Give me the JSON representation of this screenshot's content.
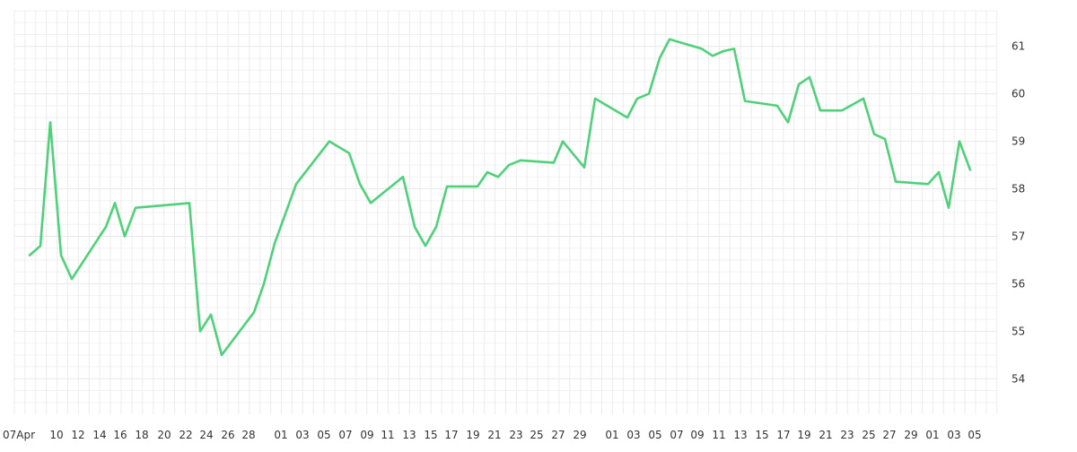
{
  "chart_data": {
    "type": "line",
    "title": "",
    "xlabel": "",
    "ylabel": "",
    "ylim": [
      53.25,
      61.75
    ],
    "grid": true,
    "line_color": "#4fd17a",
    "y_ticks": [
      54,
      55,
      56,
      57,
      58,
      59,
      60,
      61
    ],
    "x_tick_labels": [
      "07Apr",
      "10",
      "12",
      "14",
      "16",
      "18",
      "20",
      "22",
      "24",
      "26",
      "28",
      "01",
      "03",
      "05",
      "07",
      "09",
      "11",
      "13",
      "15",
      "17",
      "19",
      "21",
      "23",
      "25",
      "27",
      "29",
      "01",
      "03",
      "05",
      "07",
      "09",
      "11",
      "13",
      "15",
      "17",
      "19",
      "21",
      "23",
      "25",
      "27",
      "29",
      "01",
      "03",
      "05"
    ],
    "series": [
      {
        "values": [
          56.6,
          56.8,
          59.4,
          56.6,
          56.1,
          57.2,
          57.7,
          57.0,
          57.6,
          57.7,
          55.0,
          55.35,
          54.5,
          55.4,
          56.0,
          56.85,
          58.1,
          59.0,
          58.75,
          58.1,
          57.7,
          58.25,
          57.2,
          56.8,
          57.2,
          58.05,
          58.05,
          58.35,
          58.25,
          58.5,
          58.6,
          58.55,
          59.0,
          58.45,
          59.9,
          59.5,
          59.9,
          60.0,
          60.75,
          61.15,
          60.95,
          60.8,
          60.9,
          60.95,
          59.85,
          59.75,
          59.4,
          60.2,
          60.35,
          59.65,
          59.65,
          59.9,
          59.15,
          59.05,
          58.15,
          58.1,
          58.35,
          57.6,
          59.0,
          58.4
        ]
      }
    ]
  }
}
